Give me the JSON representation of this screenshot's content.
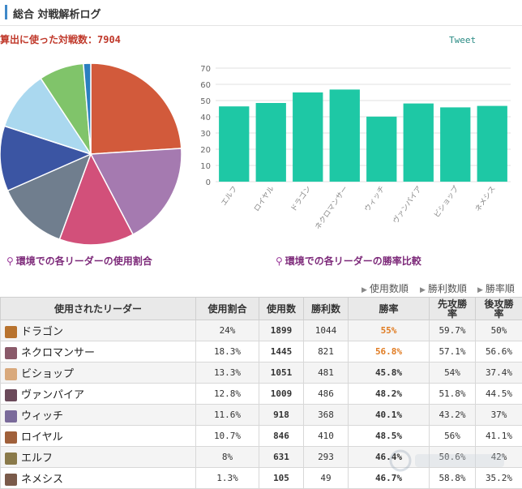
{
  "header": {
    "title": "総合 対戦解析ログ"
  },
  "summary": {
    "battle_count_text": "算出に使った対戦数：7904"
  },
  "tweet_label": "Tweet",
  "captions": {
    "pie": "環境での各リーダーの使用割合",
    "bar": "環境での各リーダーの勝率比較"
  },
  "sort_links": [
    "使用数順",
    "勝利数順",
    "勝率順"
  ],
  "table": {
    "headers": [
      "使用されたリーダー",
      "使用割合",
      "使用数",
      "勝利数",
      "勝率",
      "先攻勝\n率",
      "後攻勝\n率"
    ],
    "rows": [
      {
        "leader": "ドラゴン",
        "share": "24%",
        "uses": "1899",
        "wins": "1044",
        "rate": "55%",
        "first": "59.7%",
        "second": "50%",
        "highlight": true,
        "avatar": "#b8732f"
      },
      {
        "leader": "ネクロマンサー",
        "share": "18.3%",
        "uses": "1445",
        "wins": "821",
        "rate": "56.8%",
        "first": "57.1%",
        "second": "56.6%",
        "highlight": true,
        "avatar": "#8a5a6a"
      },
      {
        "leader": "ビショップ",
        "share": "13.3%",
        "uses": "1051",
        "wins": "481",
        "rate": "45.8%",
        "first": "54%",
        "second": "37.4%",
        "highlight": false,
        "avatar": "#d9a97c"
      },
      {
        "leader": "ヴァンパイア",
        "share": "12.8%",
        "uses": "1009",
        "wins": "486",
        "rate": "48.2%",
        "first": "51.8%",
        "second": "44.5%",
        "highlight": false,
        "avatar": "#6b4a5a"
      },
      {
        "leader": "ウィッチ",
        "share": "11.6%",
        "uses": "918",
        "wins": "368",
        "rate": "40.1%",
        "first": "43.2%",
        "second": "37%",
        "highlight": false,
        "avatar": "#7a6a9a"
      },
      {
        "leader": "ロイヤル",
        "share": "10.7%",
        "uses": "846",
        "wins": "410",
        "rate": "48.5%",
        "first": "56%",
        "second": "41.1%",
        "highlight": false,
        "avatar": "#a0603a"
      },
      {
        "leader": "エルフ",
        "share": "8%",
        "uses": "631",
        "wins": "293",
        "rate": "46.4%",
        "first": "50.6%",
        "second": "42%",
        "highlight": false,
        "avatar": "#8a7a4a"
      },
      {
        "leader": "ネメシス",
        "share": "1.3%",
        "uses": "105",
        "wins": "49",
        "rate": "46.7%",
        "first": "58.8%",
        "second": "35.2%",
        "highlight": false,
        "avatar": "#7a5a4a"
      }
    ]
  },
  "chart_data": [
    {
      "type": "pie",
      "categories": [
        "ドラゴン",
        "ネクロマンサー",
        "ビショップ",
        "ヴァンパイア",
        "ウィッチ",
        "ロイヤル",
        "エルフ",
        "ネメシス"
      ],
      "values": [
        24,
        18.3,
        13.3,
        12.8,
        11.6,
        10.7,
        8,
        1.3
      ],
      "colors": [
        "#d25a3b",
        "#a57ab0",
        "#d2507a",
        "#707e8e",
        "#3b55a3",
        "#aad8ef",
        "#80c46a",
        "#2b7fc0"
      ]
    },
    {
      "type": "bar",
      "categories": [
        "エルフ",
        "ロイヤル",
        "ドラゴン",
        "ネクロマンサー",
        "ウィッチ",
        "ヴァンパイア",
        "ビショップ",
        "ネメシス"
      ],
      "values": [
        46.4,
        48.5,
        55,
        56.8,
        40.1,
        48.2,
        45.8,
        46.7
      ],
      "ylim": [
        0,
        70
      ],
      "yticks": [
        0,
        10,
        20,
        30,
        40,
        50,
        60,
        70
      ],
      "color": "#1ec8a5",
      "grid": true
    }
  ]
}
